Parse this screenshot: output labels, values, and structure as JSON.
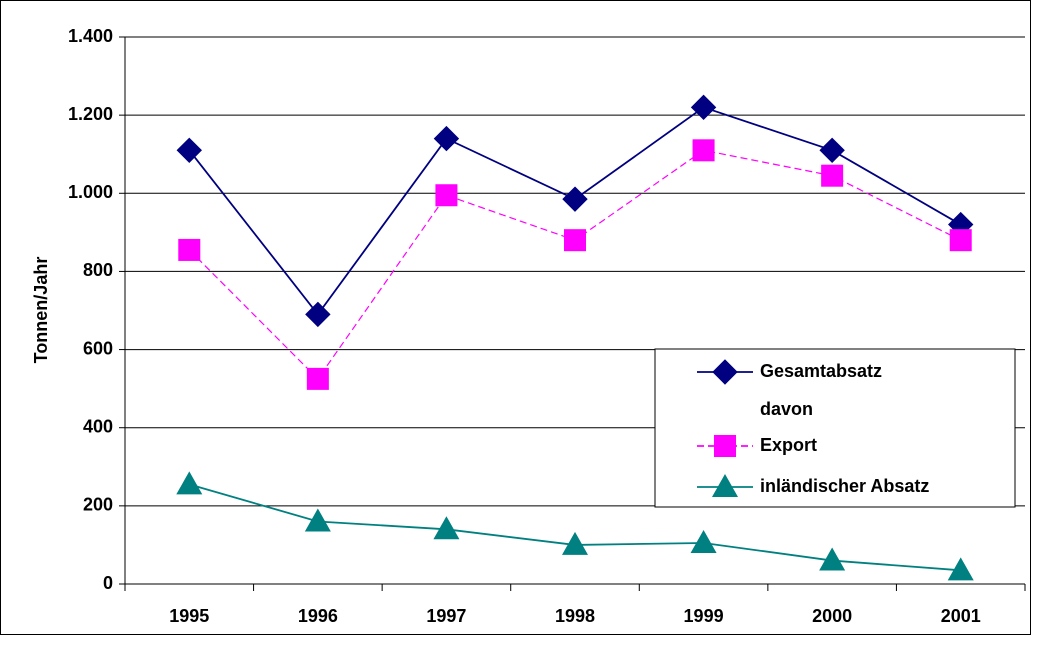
{
  "chart_data": {
    "type": "line",
    "y_label": "Tonnen/Jahr",
    "categories": [
      "1995",
      "1996",
      "1997",
      "1998",
      "1999",
      "2000",
      "2001"
    ],
    "series": [
      {
        "name": "Gesamtabsatz",
        "color": "#000080",
        "marker": "diamond",
        "dashed": false,
        "values": [
          1110,
          690,
          1140,
          985,
          1220,
          1110,
          920
        ]
      },
      {
        "name": "Export",
        "color": "#ff00ff",
        "marker": "square",
        "dashed": true,
        "values": [
          855,
          525,
          995,
          880,
          1110,
          1045,
          880
        ]
      },
      {
        "name": "inländischer Absatz",
        "color": "#008080",
        "marker": "triangle",
        "dashed": false,
        "values": [
          255,
          160,
          140,
          100,
          105,
          60,
          35
        ]
      }
    ],
    "legend_note": "davon",
    "ylim": [
      0,
      1400
    ],
    "yticks": [
      0,
      200,
      400,
      600,
      800,
      {
        "value": 1000,
        "label": "1.000"
      },
      {
        "value": 1200,
        "label": "1.200"
      },
      {
        "value": 1400,
        "label": "1.400"
      }
    ],
    "grid": true
  }
}
